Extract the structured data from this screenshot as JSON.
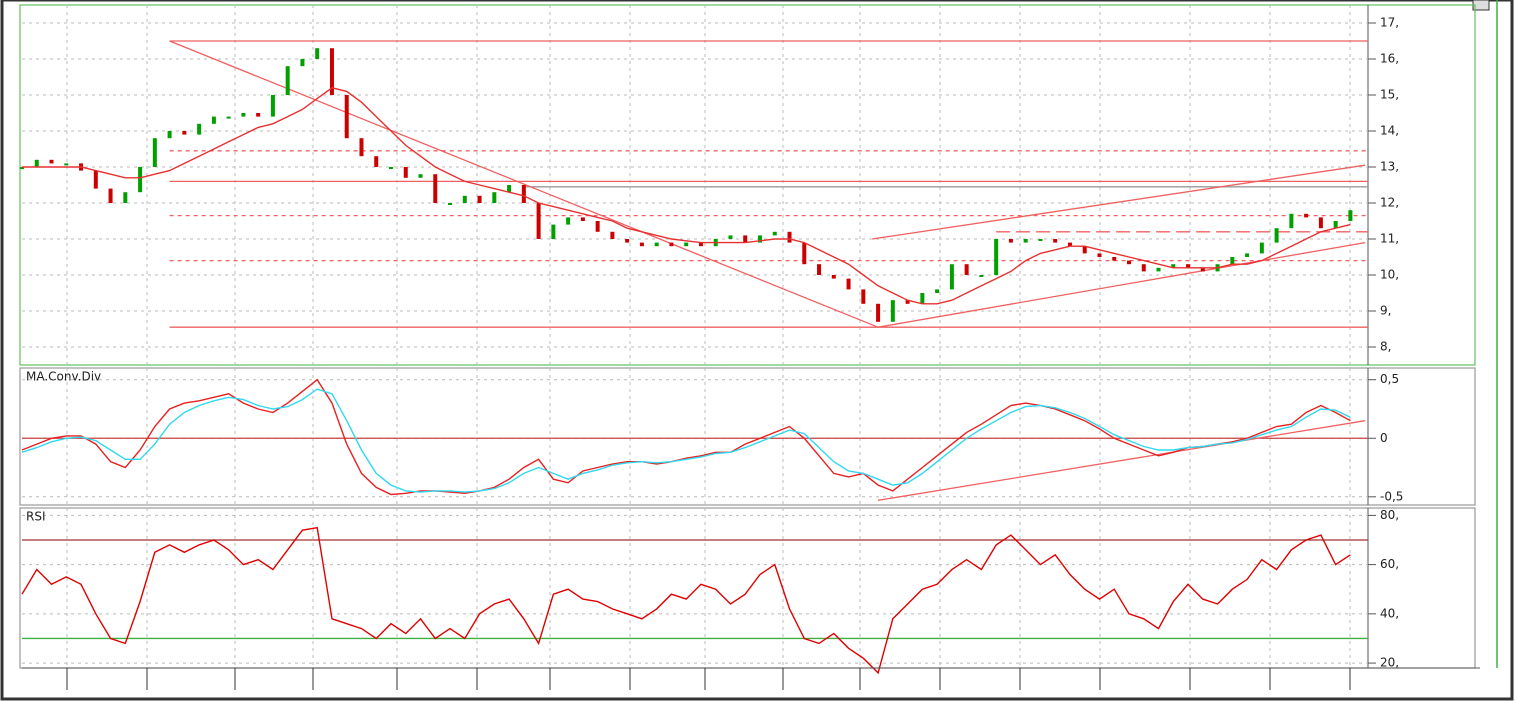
{
  "chart_data": [
    {
      "type": "candles",
      "name": "price",
      "values": [
        13.0,
        13.2,
        13.1,
        13.1,
        12.9,
        12.4,
        12.0,
        12.3,
        13.0,
        13.8,
        14.0,
        13.9,
        14.2,
        14.4,
        14.4,
        14.5,
        14.4,
        15.0,
        15.8,
        16.0,
        16.3,
        15.0,
        13.8,
        13.3,
        13.0,
        13.0,
        12.7,
        12.8,
        12.0,
        12.0,
        12.2,
        12.0,
        12.3,
        12.5,
        12.0,
        11.0,
        11.4,
        11.6,
        11.5,
        11.2,
        11.0,
        10.9,
        10.8,
        10.9,
        10.8,
        10.9,
        10.8,
        11.0,
        11.1,
        10.9,
        11.1,
        11.2,
        10.9,
        10.3,
        10.0,
        9.9,
        9.6,
        9.2,
        8.7,
        9.3,
        9.2,
        9.5,
        9.6,
        10.3,
        10.0,
        10.0,
        11.0,
        10.9,
        11.0,
        11.0,
        10.9,
        10.8,
        10.6,
        10.5,
        10.4,
        10.3,
        10.1,
        10.2,
        10.3,
        10.2,
        10.1,
        10.3,
        10.5,
        10.6,
        10.9,
        11.3,
        11.7,
        11.6,
        11.3,
        11.5,
        11.8
      ],
      "up_color": "#00a000",
      "down_color": "#cc0000",
      "series": [
        {
          "color": "#e83030",
          "values": [
            13.0,
            13.0,
            13.0,
            13.0,
            13.0,
            12.9,
            12.8,
            12.7,
            12.7,
            12.8,
            12.9,
            13.1,
            13.3,
            13.5,
            13.7,
            13.9,
            14.1,
            14.2,
            14.4,
            14.6,
            14.9,
            15.2,
            15.1,
            14.8,
            14.4,
            14.0,
            13.6,
            13.3,
            13.0,
            12.8,
            12.6,
            12.5,
            12.4,
            12.3,
            12.2,
            12.0,
            11.9,
            11.8,
            11.7,
            11.6,
            11.5,
            11.3,
            11.2,
            11.1,
            11.0,
            10.95,
            10.9,
            10.9,
            10.9,
            10.9,
            10.95,
            11.0,
            11.0,
            10.9,
            10.7,
            10.5,
            10.3,
            10.0,
            9.7,
            9.5,
            9.3,
            9.2,
            9.2,
            9.3,
            9.5,
            9.7,
            9.9,
            10.1,
            10.4,
            10.6,
            10.7,
            10.8,
            10.8,
            10.7,
            10.6,
            10.5,
            10.4,
            10.3,
            10.2,
            10.2,
            10.2,
            10.2,
            10.3,
            10.3,
            10.4,
            10.6,
            10.8,
            11.0,
            11.2,
            11.3,
            11.4
          ]
        }
      ],
      "hlines": [
        {
          "value": 16.5,
          "from": 10,
          "color": "#f06060"
        },
        {
          "value": 12.6,
          "from": 10,
          "color": "#f06060"
        },
        {
          "value": 8.55,
          "from": 10,
          "color": "#f06060"
        },
        {
          "value": 12.45,
          "from": 34,
          "color": "#9a9a9a"
        },
        {
          "value": 13.45,
          "from": 10,
          "color": "#f06060",
          "dash": "4,4"
        },
        {
          "value": 11.65,
          "from": 10,
          "color": "#f06060",
          "dash": "4,4"
        },
        {
          "value": 10.4,
          "from": 10,
          "color": "#f06060",
          "dash": "4,4"
        },
        {
          "value": 11.2,
          "from": 66,
          "color": "#f06060",
          "dash": "14,6"
        }
      ],
      "trendlines": [
        {
          "from": [
            10,
            16.5
          ],
          "to": [
            58,
            8.55
          ]
        },
        {
          "from": [
            58,
            8.55
          ],
          "to": [
            91,
            10.9
          ]
        },
        {
          "from": [
            57.6,
            11.0
          ],
          "to": [
            91,
            13.05
          ]
        }
      ],
      "ylim": [
        7.5,
        17.5
      ],
      "yticks": [
        {
          "value": 17,
          "label": "17,"
        },
        {
          "value": 16,
          "label": "16,"
        },
        {
          "value": 15,
          "label": "15,"
        },
        {
          "value": 14,
          "label": "14,"
        },
        {
          "value": 13,
          "label": "13,"
        },
        {
          "value": 12,
          "label": "12,"
        },
        {
          "value": 11,
          "label": "11,"
        },
        {
          "value": 10,
          "label": "10,"
        },
        {
          "value": 9,
          "label": "9,"
        },
        {
          "value": 8,
          "label": "8,"
        }
      ]
    },
    {
      "type": "line",
      "title": "MA.Conv.Div",
      "series": [
        {
          "color": "#e82020",
          "values": [
            -0.1,
            -0.05,
            0,
            0.02,
            0.02,
            -0.05,
            -0.2,
            -0.25,
            -0.1,
            0.1,
            0.25,
            0.3,
            0.32,
            0.35,
            0.38,
            0.3,
            0.25,
            0.22,
            0.3,
            0.4,
            0.5,
            0.3,
            -0.05,
            -0.3,
            -0.42,
            -0.48,
            -0.47,
            -0.45,
            -0.45,
            -0.46,
            -0.47,
            -0.45,
            -0.42,
            -0.35,
            -0.25,
            -0.18,
            -0.35,
            -0.38,
            -0.28,
            -0.25,
            -0.22,
            -0.2,
            -0.2,
            -0.22,
            -0.2,
            -0.17,
            -0.15,
            -0.12,
            -0.12,
            -0.05,
            0.0,
            0.05,
            0.1,
            0.0,
            -0.15,
            -0.3,
            -0.33,
            -0.3,
            -0.4,
            -0.45,
            -0.35,
            -0.25,
            -0.15,
            -0.05,
            0.05,
            0.12,
            0.2,
            0.28,
            0.3,
            0.28,
            0.25,
            0.2,
            0.15,
            0.08,
            0.0,
            -0.05,
            -0.1,
            -0.15,
            -0.12,
            -0.08,
            -0.07,
            -0.05,
            -0.03,
            0.0,
            0.05,
            0.1,
            0.12,
            0.22,
            0.28,
            0.22,
            0.15
          ]
        },
        {
          "color": "#30d8f0",
          "values": [
            -0.12,
            -0.08,
            -0.03,
            0.0,
            0.01,
            -0.02,
            -0.1,
            -0.18,
            -0.18,
            -0.05,
            0.12,
            0.22,
            0.28,
            0.32,
            0.35,
            0.33,
            0.28,
            0.25,
            0.27,
            0.33,
            0.42,
            0.38,
            0.15,
            -0.1,
            -0.3,
            -0.4,
            -0.45,
            -0.46,
            -0.45,
            -0.45,
            -0.46,
            -0.45,
            -0.43,
            -0.38,
            -0.3,
            -0.25,
            -0.3,
            -0.35,
            -0.3,
            -0.27,
            -0.23,
            -0.21,
            -0.2,
            -0.21,
            -0.2,
            -0.18,
            -0.16,
            -0.13,
            -0.12,
            -0.08,
            -0.03,
            0.02,
            0.07,
            0.04,
            -0.08,
            -0.2,
            -0.28,
            -0.3,
            -0.35,
            -0.4,
            -0.38,
            -0.3,
            -0.2,
            -0.1,
            0.0,
            0.08,
            0.15,
            0.22,
            0.27,
            0.28,
            0.26,
            0.22,
            0.17,
            0.1,
            0.03,
            -0.02,
            -0.07,
            -0.1,
            -0.1,
            -0.08,
            -0.07,
            -0.05,
            -0.04,
            -0.01,
            0.03,
            0.07,
            0.1,
            0.18,
            0.25,
            0.24,
            0.18
          ]
        }
      ],
      "hlines": [
        {
          "value": 0,
          "from": 0,
          "color": "#c84040"
        }
      ],
      "trendlines": [
        {
          "from": [
            58,
            -0.53
          ],
          "to": [
            91,
            0.15
          ]
        }
      ],
      "ylim": [
        -0.57,
        0.6
      ],
      "yticks": [
        {
          "value": 0.5,
          "label": "0,5"
        },
        0,
        {
          "value": -0.5,
          "label": "-0,5"
        }
      ]
    },
    {
      "type": "line",
      "title": "RSI",
      "series": [
        {
          "color": "#e00000",
          "values": [
            48,
            58,
            52,
            55,
            52,
            40,
            30,
            28,
            45,
            65,
            68,
            65,
            68,
            70,
            66,
            60,
            62,
            58,
            66,
            74,
            75,
            38,
            36,
            34,
            30,
            36,
            32,
            38,
            30,
            34,
            30,
            40,
            44,
            46,
            38,
            28,
            48,
            50,
            46,
            45,
            42,
            40,
            38,
            42,
            48,
            46,
            52,
            50,
            44,
            48,
            56,
            60,
            42,
            30,
            28,
            32,
            26,
            22,
            16,
            38,
            44,
            50,
            52,
            58,
            62,
            58,
            68,
            72,
            66,
            60,
            64,
            56,
            50,
            46,
            50,
            40,
            38,
            34,
            45,
            52,
            46,
            44,
            50,
            54,
            62,
            58,
            66,
            70,
            72,
            60,
            64
          ]
        }
      ],
      "hlines": [
        {
          "value": 70,
          "from": 0,
          "color": "#a03030"
        },
        {
          "value": 30,
          "from": 0,
          "color": "#40b040"
        }
      ],
      "trendlines": [],
      "ylim": [
        18,
        83
      ],
      "yticks": [
        {
          "value": 80,
          "label": "80,"
        },
        {
          "value": 60,
          "label": "60,"
        },
        {
          "value": 40,
          "label": "40,"
        },
        {
          "value": 20,
          "label": "20,"
        }
      ]
    }
  ]
}
